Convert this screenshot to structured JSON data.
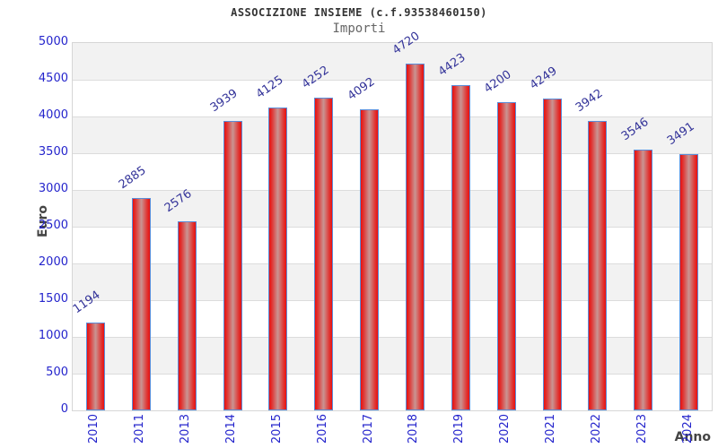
{
  "chart_data": {
    "type": "bar",
    "title": "ASSOCIZIONE INSIEME (c.f.93538460150)",
    "subtitle": "Importi",
    "xlabel": "Anno",
    "ylabel": "Euro",
    "categories": [
      "2010",
      "2011",
      "2013",
      "2014",
      "2015",
      "2016",
      "2017",
      "2018",
      "2019",
      "2020",
      "2021",
      "2022",
      "2023",
      "2024"
    ],
    "values": [
      1194,
      2885,
      2576,
      3939,
      4125,
      4252,
      4092,
      4720,
      4423,
      4200,
      4249,
      3942,
      3546,
      3491
    ],
    "ylim": [
      0,
      5000
    ],
    "ytick_step": 500,
    "grid": "alternating-horizontal-bands",
    "legend_position": "none",
    "bar_value_labels": true
  },
  "colors": {
    "title": "#333333",
    "subtitle": "#666666",
    "tick_label": "#2424cc",
    "value_label": "#333399",
    "axis_title": "#444444",
    "band_gray": "#f2f2f2",
    "band_white": "#ffffff",
    "gridline": "#dcdcdc",
    "plot_border": "#d6d6d6",
    "bar_border": "#5b8dd9",
    "bar_edge": "#e8100f",
    "bar_shade": "#e03432",
    "bar_mid": "#c99593"
  }
}
